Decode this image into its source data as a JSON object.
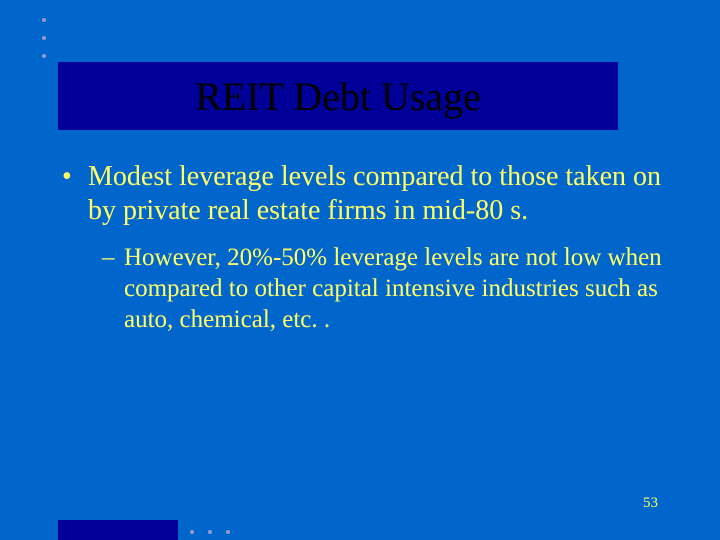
{
  "colors": {
    "slide_bg": "#0066cc",
    "band_bg": "#000099",
    "title_text": "#000000",
    "body_text": "#ffff66",
    "bullet_color": "#ffff66",
    "pagenum_color": "#ffff66",
    "deco_dot": "#9999cc",
    "footer_bar": "#000099"
  },
  "title": "REIT Debt Usage",
  "bullets": {
    "level1": {
      "marker": "•",
      "text": "Modest leverage levels compared to those taken on by private real estate firms in mid-80 s."
    },
    "level2": {
      "marker": "–",
      "text": "However, 20%-50% leverage levels are not low when compared to other capital intensive industries such as auto, chemical, etc. ."
    }
  },
  "page_number": "53"
}
